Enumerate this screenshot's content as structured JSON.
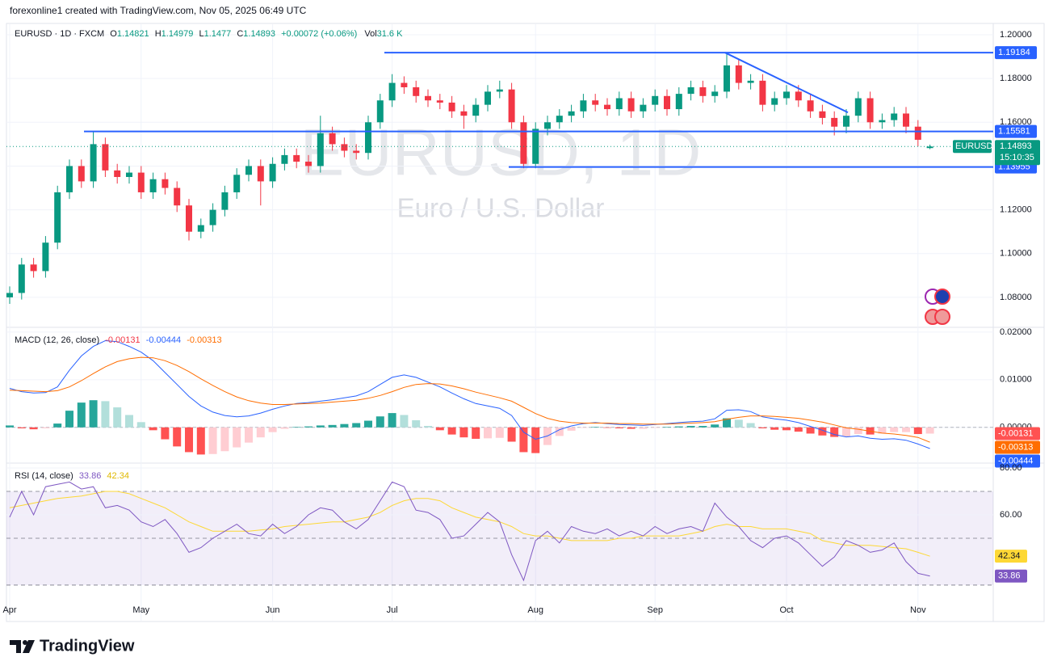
{
  "header": {
    "attribution": "forexonline1 created with TradingView.com, Nov 05, 2025 06:49 UTC",
    "symbol": "EURUSD · 1D · FXCM",
    "o_label": "O",
    "h_label": "H",
    "l_label": "L",
    "c_label": "C",
    "change": "+0.00072 (+0.06%)",
    "vol_label": "Vol",
    "volume": "31.6 K"
  },
  "watermark": {
    "symbol": "EURUSD, 1D",
    "name": "Euro / U.S. Dollar"
  },
  "footer": {
    "brand": "TradingView"
  },
  "chart_data": [
    {
      "type": "candlestick",
      "symbol_tag": "EURUSD",
      "countdown": "15:10:35",
      "up_color": "#089981",
      "down_color": "#f23645",
      "level_color": "#2962ff",
      "categories": [
        "Apr",
        null,
        null,
        null,
        null,
        null,
        null,
        null,
        null,
        null,
        null,
        "May",
        null,
        null,
        null,
        null,
        null,
        null,
        null,
        null,
        null,
        null,
        "Jun",
        null,
        null,
        null,
        null,
        null,
        null,
        null,
        null,
        null,
        "Jul",
        null,
        null,
        null,
        null,
        null,
        null,
        null,
        null,
        null,
        null,
        null,
        "Aug",
        null,
        null,
        null,
        null,
        null,
        null,
        null,
        null,
        null,
        "Sep",
        null,
        null,
        null,
        null,
        null,
        null,
        null,
        null,
        null,
        null,
        "Oct",
        null,
        null,
        null,
        null,
        null,
        null,
        null,
        null,
        null,
        null,
        "Nov",
        null
      ],
      "open": [
        1.08,
        1.082,
        1.095,
        1.092,
        1.105,
        1.128,
        1.14,
        1.133,
        1.15,
        1.138,
        1.135,
        1.137,
        1.128,
        1.134,
        1.13,
        1.122,
        1.11,
        1.113,
        1.12,
        1.128,
        1.136,
        1.14,
        1.133,
        1.141,
        1.145,
        1.142,
        1.14,
        1.155,
        1.15,
        1.147,
        1.146,
        1.16,
        1.17,
        1.178,
        1.176,
        1.172,
        1.17,
        1.169,
        1.165,
        1.163,
        1.168,
        1.174,
        1.175,
        1.16,
        1.141,
        1.157,
        1.16,
        1.163,
        1.165,
        1.17,
        1.168,
        1.166,
        1.171,
        1.165,
        1.168,
        1.172,
        1.166,
        1.173,
        1.176,
        1.172,
        1.174,
        1.186,
        1.178,
        1.179,
        1.168,
        1.171,
        1.174,
        1.17,
        1.165,
        1.162,
        1.158,
        1.163,
        1.171,
        1.16,
        1.161,
        1.164,
        1.158,
        1.14821
      ],
      "high": [
        1.085,
        1.098,
        1.098,
        1.108,
        1.131,
        1.143,
        1.143,
        1.156,
        1.153,
        1.141,
        1.14,
        1.14,
        1.137,
        1.137,
        1.133,
        1.125,
        1.116,
        1.123,
        1.131,
        1.139,
        1.143,
        1.143,
        1.144,
        1.148,
        1.148,
        1.145,
        1.163,
        1.158,
        1.153,
        1.15,
        1.163,
        1.173,
        1.182,
        1.181,
        1.179,
        1.175,
        1.173,
        1.172,
        1.168,
        1.171,
        1.177,
        1.179,
        1.178,
        1.163,
        1.16,
        1.163,
        1.166,
        1.168,
        1.173,
        1.173,
        1.171,
        1.174,
        1.174,
        1.171,
        1.175,
        1.175,
        1.176,
        1.179,
        1.179,
        1.177,
        1.1918,
        1.189,
        1.182,
        1.182,
        1.174,
        1.177,
        1.177,
        1.173,
        1.168,
        1.165,
        1.166,
        1.174,
        1.174,
        1.164,
        1.167,
        1.167,
        1.161,
        1.14979
      ],
      "low": [
        1.077,
        1.079,
        1.089,
        1.089,
        1.102,
        1.125,
        1.13,
        1.13,
        1.135,
        1.132,
        1.132,
        1.125,
        1.125,
        1.127,
        1.119,
        1.106,
        1.107,
        1.11,
        1.117,
        1.125,
        1.133,
        1.122,
        1.13,
        1.138,
        1.139,
        1.137,
        1.137,
        1.147,
        1.144,
        1.143,
        1.143,
        1.157,
        1.167,
        1.173,
        1.169,
        1.167,
        1.166,
        1.162,
        1.157,
        1.16,
        1.165,
        1.171,
        1.157,
        1.139,
        1.139,
        1.154,
        1.157,
        1.16,
        1.162,
        1.165,
        1.163,
        1.163,
        1.162,
        1.162,
        1.165,
        1.163,
        1.163,
        1.17,
        1.169,
        1.169,
        1.171,
        1.175,
        1.175,
        1.165,
        1.165,
        1.168,
        1.167,
        1.162,
        1.159,
        1.154,
        1.155,
        1.16,
        1.157,
        1.157,
        1.158,
        1.155,
        1.149,
        1.1477
      ],
      "close": [
        1.082,
        1.095,
        1.092,
        1.105,
        1.128,
        1.14,
        1.133,
        1.15,
        1.138,
        1.135,
        1.137,
        1.128,
        1.134,
        1.13,
        1.122,
        1.11,
        1.113,
        1.12,
        1.128,
        1.136,
        1.14,
        1.133,
        1.141,
        1.145,
        1.142,
        1.14,
        1.155,
        1.15,
        1.147,
        1.146,
        1.16,
        1.17,
        1.178,
        1.176,
        1.172,
        1.17,
        1.169,
        1.165,
        1.163,
        1.168,
        1.174,
        1.175,
        1.16,
        1.141,
        1.157,
        1.16,
        1.163,
        1.165,
        1.17,
        1.168,
        1.166,
        1.171,
        1.165,
        1.168,
        1.172,
        1.166,
        1.173,
        1.176,
        1.172,
        1.174,
        1.186,
        1.178,
        1.179,
        1.168,
        1.171,
        1.174,
        1.17,
        1.165,
        1.162,
        1.158,
        1.163,
        1.171,
        1.16,
        1.161,
        1.164,
        1.158,
        1.152,
        1.14893
      ],
      "levels": [
        1.19184,
        1.15581,
        1.13955
      ],
      "trendline": {
        "from": 1.1918,
        "to": 1.1645
      },
      "ylim": [
        1.0663,
        1.2048
      ],
      "yticks": [
        {
          "value": 1.2,
          "label": "1.20000"
        },
        {
          "value": 1.18,
          "label": "1.18000"
        },
        {
          "value": 1.16,
          "label": "1.16000"
        },
        {
          "value": 1.14,
          "label": "1.14000"
        },
        {
          "value": 1.12,
          "label": "1.12000"
        },
        {
          "value": 1.1,
          "label": "1.10000"
        },
        {
          "value": 1.08,
          "label": "1.08000"
        }
      ],
      "grid": true
    },
    {
      "type": "macd",
      "title": "MACD (12, 26, close)",
      "macd_color": "#2962ff",
      "signal_color": "#ff6d00",
      "hist_colors": {
        "up_strong": "#26a69a",
        "up_weak": "#b2dfdb",
        "down_strong": "#ff5252",
        "down_weak": "#ffcdd2"
      },
      "histogram": [
        0.0004,
        -0.0002,
        -0.0004,
        -0.0002,
        0.0008,
        0.0035,
        0.0052,
        0.0057,
        0.0055,
        0.0042,
        0.0026,
        0.0011,
        -0.0006,
        -0.0025,
        -0.004,
        -0.0052,
        -0.0057,
        -0.0056,
        -0.005,
        -0.0042,
        -0.0032,
        -0.0021,
        -0.001,
        -0.0003,
        0.0001,
        0.0002,
        0.0004,
        0.0005,
        0.0007,
        0.0009,
        0.0014,
        0.0023,
        0.003,
        0.0026,
        0.0015,
        0.0003,
        -0.0006,
        -0.0015,
        -0.0021,
        -0.0024,
        -0.0023,
        -0.0022,
        -0.003,
        -0.0052,
        -0.0054,
        -0.0037,
        -0.0018,
        -0.0007,
        -0.0001,
        0.0001,
        -0.0001,
        -0.0002,
        -0.0003,
        -0.0003,
        -0.0001,
        0.0001,
        0.0002,
        0.0003,
        0.0003,
        0.0006,
        0.0019,
        0.0016,
        0.0009,
        -0.0002,
        -0.0005,
        -0.0006,
        -0.0009,
        -0.0013,
        -0.0017,
        -0.002,
        -0.0019,
        -0.0014,
        -0.0015,
        -0.0013,
        -0.001,
        -0.001,
        -0.0014,
        -0.00131
      ],
      "macd": [
        0.0082,
        0.0075,
        0.0072,
        0.0073,
        0.0085,
        0.012,
        0.015,
        0.017,
        0.0182,
        0.018,
        0.017,
        0.0158,
        0.014,
        0.0115,
        0.009,
        0.0065,
        0.0045,
        0.0032,
        0.0025,
        0.0022,
        0.0024,
        0.003,
        0.0038,
        0.0045,
        0.005,
        0.0052,
        0.0055,
        0.0058,
        0.0062,
        0.0066,
        0.0075,
        0.009,
        0.0105,
        0.011,
        0.0105,
        0.0095,
        0.0085,
        0.0072,
        0.006,
        0.005,
        0.0045,
        0.004,
        0.0025,
        -0.001,
        -0.0025,
        -0.0018,
        -0.0005,
        0.0003,
        0.0008,
        0.001,
        0.0008,
        0.0006,
        0.0005,
        0.0004,
        0.0006,
        0.0008,
        0.001,
        0.0012,
        0.0013,
        0.0018,
        0.0036,
        0.0037,
        0.0033,
        0.0022,
        0.0018,
        0.0015,
        0.001,
        0.0002,
        -0.0006,
        -0.0015,
        -0.002,
        -0.0018,
        -0.0023,
        -0.0025,
        -0.0024,
        -0.0027,
        -0.0035,
        -0.00444
      ],
      "signal": [
        0.0078,
        0.0077,
        0.0076,
        0.0075,
        0.0077,
        0.0085,
        0.0098,
        0.0113,
        0.0127,
        0.0138,
        0.0144,
        0.0147,
        0.0146,
        0.014,
        0.013,
        0.0117,
        0.0102,
        0.0088,
        0.0075,
        0.0064,
        0.0056,
        0.0051,
        0.0048,
        0.0048,
        0.0049,
        0.005,
        0.0051,
        0.0053,
        0.0055,
        0.0057,
        0.0061,
        0.0067,
        0.0075,
        0.0084,
        0.009,
        0.0092,
        0.0091,
        0.0087,
        0.0081,
        0.0074,
        0.0068,
        0.0062,
        0.0055,
        0.0042,
        0.0029,
        0.0019,
        0.0013,
        0.001,
        0.0009,
        0.0009,
        0.0009,
        0.0008,
        0.0008,
        0.0007,
        0.0007,
        0.0007,
        0.0008,
        0.0009,
        0.001,
        0.0012,
        0.0017,
        0.0021,
        0.0024,
        0.0024,
        0.0023,
        0.0021,
        0.0019,
        0.0015,
        0.0011,
        0.0005,
        -0.0001,
        -0.0004,
        -0.0008,
        -0.0012,
        -0.0014,
        -0.0017,
        -0.0021,
        -0.00313
      ],
      "ylim": [
        -0.0075,
        0.021
      ],
      "yticks": [
        {
          "value": 0.02,
          "label": "0.02000"
        },
        {
          "value": 0.01,
          "label": "0.01000"
        },
        {
          "value": 0,
          "label": "0.00000"
        }
      ]
    },
    {
      "type": "rsi",
      "title": "RSI (14, close)",
      "rsi_color": "#7e57c2",
      "ma_color": "#fdd835",
      "band_color": "#7e57c2",
      "rsi": [
        59,
        70,
        60,
        72,
        73,
        74,
        71,
        72,
        63,
        64,
        62,
        57,
        55,
        58,
        52,
        44,
        46,
        50,
        53,
        56,
        52,
        51,
        56,
        52,
        55,
        60,
        63,
        62,
        57,
        54,
        58,
        66,
        74,
        72,
        62,
        61,
        58,
        50,
        51,
        56,
        61,
        57,
        43,
        32,
        49,
        53,
        48,
        55,
        53,
        52,
        54,
        51,
        53,
        51,
        55,
        52,
        54,
        55,
        53,
        65,
        59,
        55,
        49,
        46,
        50,
        51,
        48,
        43,
        38,
        42,
        49,
        47,
        44,
        45,
        48,
        40,
        35,
        33.86
      ],
      "ma": [
        63,
        64,
        65,
        66,
        67,
        67.5,
        68,
        69,
        70,
        70,
        69,
        67,
        65,
        63,
        60,
        57,
        55,
        53,
        53,
        53,
        53,
        53.5,
        54,
        55,
        55.5,
        56,
        56.5,
        57,
        57,
        58,
        59,
        61,
        64,
        66,
        67,
        67,
        66,
        63,
        61,
        59,
        58,
        57,
        55,
        52,
        51,
        51,
        50,
        49,
        49,
        49,
        49,
        50,
        50,
        51,
        51,
        51,
        51,
        52,
        53,
        55,
        56,
        55,
        55,
        54,
        54,
        54,
        53,
        52,
        49,
        48,
        47,
        47,
        47,
        46.5,
        46,
        45.5,
        44,
        42.34
      ],
      "bands": [
        70,
        50,
        30
      ],
      "ylim": [
        14.8,
        82.07
      ],
      "yticks": [
        {
          "value": 80,
          "label": "80.00"
        },
        {
          "value": 60,
          "label": "60.00"
        }
      ]
    }
  ]
}
